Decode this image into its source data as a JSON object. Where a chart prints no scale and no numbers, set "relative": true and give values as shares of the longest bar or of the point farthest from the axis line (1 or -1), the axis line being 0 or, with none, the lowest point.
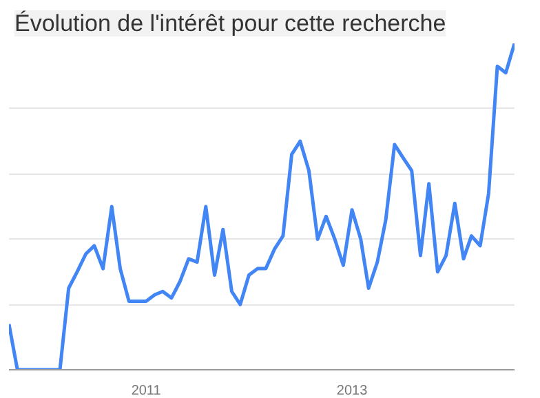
{
  "chart_data": {
    "type": "line",
    "title": "Évolution de l'intérêt pour cette recherche",
    "relative": true,
    "x": [
      "2009-09",
      "2009-10",
      "2009-11",
      "2009-12",
      "2010-01",
      "2010-02",
      "2010-03",
      "2010-04",
      "2010-05",
      "2010-06",
      "2010-07",
      "2010-08",
      "2010-09",
      "2010-10",
      "2010-11",
      "2010-12",
      "2011-01",
      "2011-02",
      "2011-03",
      "2011-04",
      "2011-05",
      "2011-06",
      "2011-07",
      "2011-08",
      "2011-09",
      "2011-10",
      "2011-11",
      "2011-12",
      "2012-01",
      "2012-02",
      "2012-03",
      "2012-04",
      "2012-05",
      "2012-06",
      "2012-07",
      "2012-08",
      "2012-09",
      "2012-10",
      "2012-11",
      "2012-12",
      "2013-01",
      "2013-02",
      "2013-03",
      "2013-04",
      "2013-05",
      "2013-06",
      "2013-07",
      "2013-08",
      "2013-09",
      "2013-10",
      "2013-11",
      "2013-12",
      "2014-01",
      "2014-02",
      "2014-03",
      "2014-04",
      "2014-05",
      "2014-06",
      "2014-07",
      "2014-08"
    ],
    "series": [
      {
        "color": "#4285f4",
        "values": [
          0.14,
          0,
          0,
          0,
          0,
          0,
          0,
          0.25,
          0.3,
          0.355,
          0.38,
          0.31,
          0.5,
          0.31,
          0.21,
          0.21,
          0.21,
          0.23,
          0.24,
          0.22,
          0.27,
          0.34,
          0.33,
          0.5,
          0.29,
          0.43,
          0.24,
          0.2,
          0.29,
          0.31,
          0.31,
          0.37,
          0.41,
          0.66,
          0.7,
          0.61,
          0.4,
          0.47,
          0.4,
          0.32,
          0.49,
          0.4,
          0.25,
          0.33,
          0.46,
          0.69,
          0.65,
          0.61,
          0.35,
          0.57,
          0.3,
          0.35,
          0.51,
          0.34,
          0.41,
          0.38,
          0.54,
          0.93,
          0.91,
          1.0
        ]
      }
    ],
    "xlim": [
      "2009-09",
      "2014-08"
    ],
    "xticks": [
      {
        "value": "2011-01",
        "label": "2011"
      },
      {
        "value": "2013-01",
        "label": "2013"
      }
    ],
    "grid": "y",
    "marker": "none",
    "line_style": "solid"
  }
}
